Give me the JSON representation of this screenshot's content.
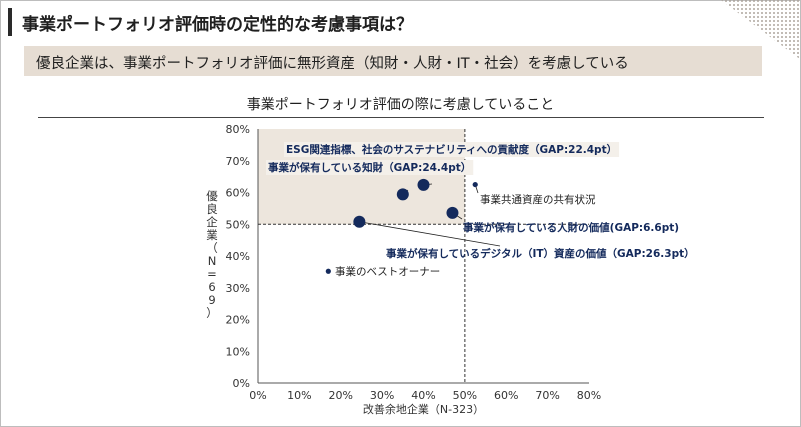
{
  "page": {
    "title": "事業ポートフォリオ評価時の定性的な考慮事項は？",
    "banner": "優良企業は、事業ポートフォリオ評価に無形資産（知財・人財・IT・社会）を考慮している"
  },
  "chart_data": {
    "type": "scatter",
    "title": "事業ポートフォリオ評価の際に考慮していること",
    "xlabel": "改善余地企業（N-323）",
    "ylabel": "優良企業（N=69）",
    "xlim": [
      0,
      80
    ],
    "ylim": [
      0,
      80
    ],
    "x_ticks": [
      "0%",
      "10%",
      "20%",
      "30%",
      "40%",
      "50%",
      "60%",
      "70%",
      "80%"
    ],
    "y_ticks": [
      "0%",
      "10%",
      "20%",
      "30%",
      "40%",
      "50%",
      "60%",
      "70%",
      "80%"
    ],
    "reference_x": 50,
    "reference_y": 50,
    "highlight_region": {
      "x": [
        0,
        50
      ],
      "y": [
        50,
        80
      ],
      "color": "#ede6dd"
    },
    "point_color": "#142a5c",
    "points": [
      {
        "label": "ESG関連指標、社会のサステナビリティへの貢献度（GAP:22.4pt）",
        "x": 40,
        "y": 62.4,
        "size": "large",
        "highlight": true
      },
      {
        "label": "事業が保有している知財（GAP:24.4pt）",
        "x": 35,
        "y": 59.4,
        "size": "large",
        "highlight": true
      },
      {
        "label": "事業共通資産の共有状況",
        "x": 52.5,
        "y": 62.5,
        "size": "small",
        "highlight": false
      },
      {
        "label": "事業が保有している人財の価値(GAP:6.6pt)",
        "x": 47,
        "y": 53.6,
        "size": "large",
        "highlight": true
      },
      {
        "label": "事業が保有しているデジタル（IT）資産の価値（GAP:26.3pt）",
        "x": 24.5,
        "y": 50.8,
        "size": "large",
        "highlight": true
      },
      {
        "label": "事業のベストオーナー",
        "x": 17,
        "y": 35.2,
        "size": "small",
        "highlight": false
      }
    ]
  }
}
